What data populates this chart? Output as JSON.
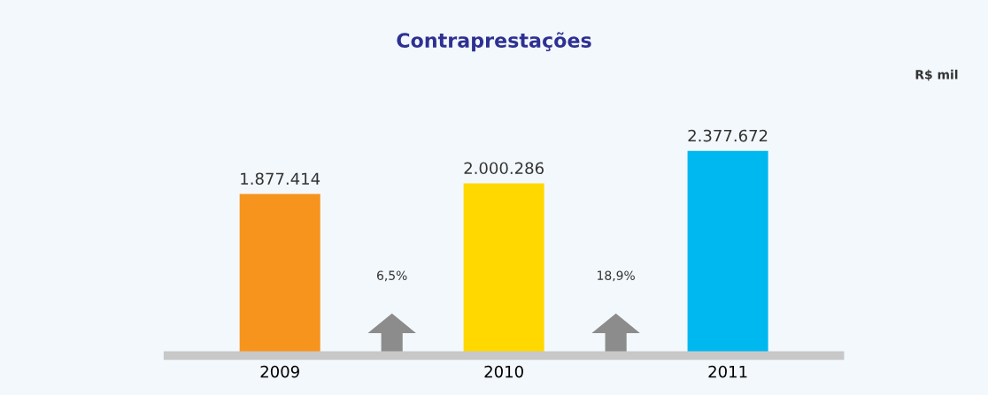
{
  "chart_data": {
    "type": "bar",
    "title": "Contraprestações",
    "categories": [
      "2009",
      "2010",
      "2011"
    ],
    "values": [
      1877414,
      2000286,
      2377672
    ],
    "colors": [
      "#f7941d",
      "#ffd800",
      "#00b8f0"
    ],
    "value_labels": [
      "1.877.414",
      "2.000.286",
      "2.377.672"
    ],
    "tick_labels": "x",
    "grid": false,
    "annotations": [
      "R$ mil",
      "6,5%",
      "18,9%"
    ]
  }
}
